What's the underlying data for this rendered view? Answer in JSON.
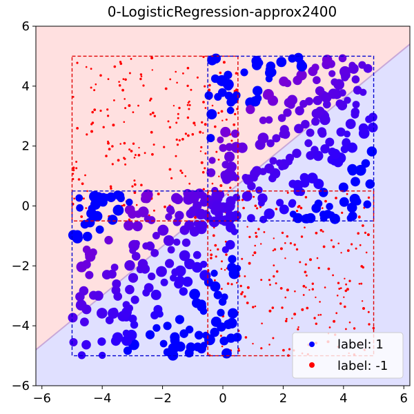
{
  "chart_data": {
    "type": "scatter",
    "title": "0-LogisticRegression-approx2400",
    "xlabel": "",
    "ylabel": "",
    "xlim": [
      -6.2,
      6.2
    ],
    "ylim": [
      -6.0,
      6.0
    ],
    "xticks": [
      -6,
      -4,
      -2,
      0,
      2,
      4,
      6
    ],
    "yticks": [
      -6,
      -4,
      -2,
      0,
      2,
      4,
      6
    ],
    "xtick_labels": [
      "−6",
      "−4",
      "−2",
      "0",
      "2",
      "4",
      "6"
    ],
    "ytick_labels": [
      "−6",
      "−4",
      "−2",
      "0",
      "2",
      "4",
      "6"
    ],
    "grid": false,
    "decision_boundary": {
      "line": [
        [
          -6.2,
          -4.8
        ],
        [
          6.2,
          5.4
        ]
      ],
      "region_above_color": "#ffe0e0",
      "region_below_color": "#e0e0ff",
      "line_color": "#c8a8d8"
    },
    "rectangles": [
      {
        "x0": -5,
        "y0": -0.5,
        "x1": 0.5,
        "y1": 5,
        "color": "#e00000"
      },
      {
        "x0": -0.5,
        "y0": -0.5,
        "x1": 5,
        "y1": 5,
        "color": "#0000d0"
      },
      {
        "x0": -5,
        "y0": -5,
        "x1": 0.5,
        "y1": 0.5,
        "color": "#0000d0"
      },
      {
        "x0": -0.5,
        "y0": -5,
        "x1": 5,
        "y1": 0.5,
        "color": "#e00000"
      }
    ],
    "series": [
      {
        "name": "label: 1",
        "color": "#0000ff",
        "regions": [
          {
            "x0": -0.5,
            "x1": 5,
            "y0": -0.5,
            "y1": 5,
            "count": 230
          },
          {
            "x0": -5,
            "x1": 0.5,
            "y0": -5,
            "y1": 0.5,
            "count": 230
          }
        ]
      },
      {
        "name": "label: -1",
        "color": "#ff0000",
        "regions": [
          {
            "x0": -5,
            "x1": 0.5,
            "y0": -0.5,
            "y1": 5,
            "count": 230
          },
          {
            "x0": -0.5,
            "x1": 5,
            "y0": -5,
            "y1": 0.5,
            "count": 230
          }
        ]
      }
    ],
    "legend": {
      "position": "lower-right",
      "entries": [
        {
          "label": "label: 1",
          "color": "#0000ff"
        },
        {
          "label": "label: -1",
          "color": "#ff0000"
        }
      ]
    }
  }
}
